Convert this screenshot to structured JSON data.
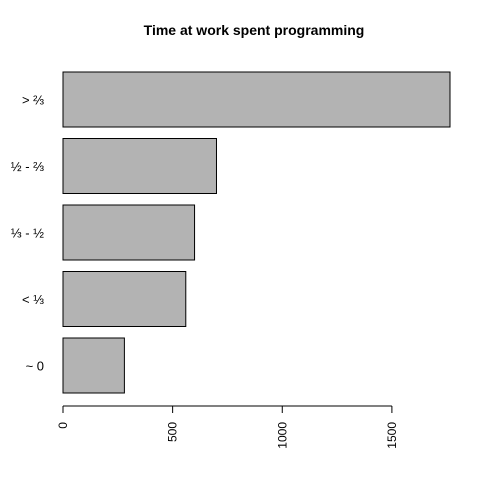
{
  "chart_data": {
    "type": "bar",
    "orientation": "horizontal",
    "title": "Time at work spent programming",
    "xlabel": "",
    "ylabel": "",
    "categories": [
      "~ 0",
      "< ⅓",
      "⅓ - ½",
      "½ - ⅔",
      "> ⅔"
    ],
    "values": [
      280,
      560,
      600,
      700,
      1765
    ],
    "xlim": [
      0,
      1765
    ],
    "ticks": [
      0,
      500,
      1000,
      1500
    ],
    "tick_labels": [
      "0",
      "500",
      "1000",
      "1500"
    ],
    "grid": false,
    "bar_color": "#b3b3b3",
    "border_color": "#000000"
  }
}
